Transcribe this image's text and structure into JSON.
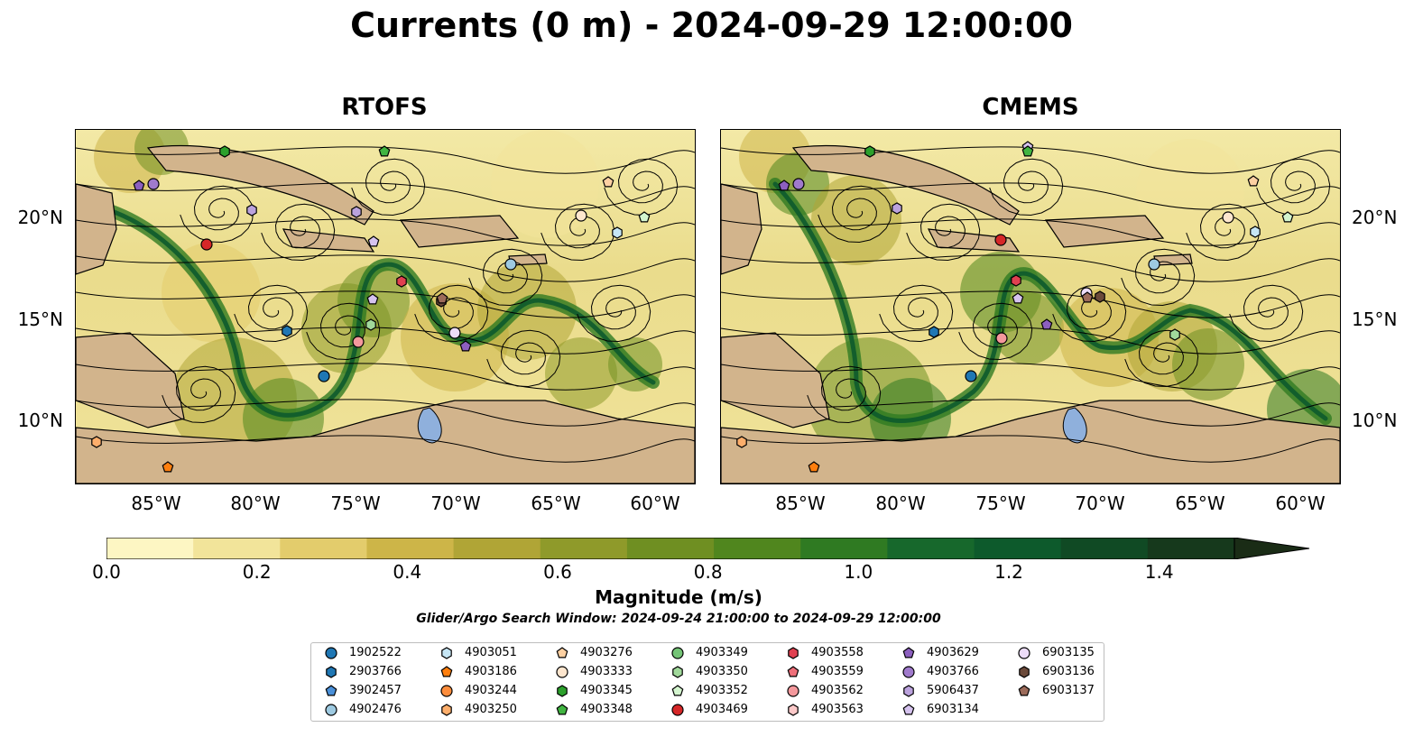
{
  "title": "Currents (0 m) - 2024-09-29 12:00:00",
  "panels": [
    {
      "title": "RTOFS"
    },
    {
      "title": "CMEMS"
    }
  ],
  "x_ticks": [
    "85°W",
    "80°W",
    "75°W",
    "70°W",
    "65°W",
    "60°W"
  ],
  "y_ticks": [
    "20°N",
    "15°N",
    "10°N"
  ],
  "colorbar": {
    "label": "Magnitude (m/s)",
    "ticks": [
      "0.0",
      "0.2",
      "0.4",
      "0.6",
      "0.8",
      "1.0",
      "1.2",
      "1.4"
    ],
    "range": [
      0,
      1.5
    ],
    "colors": [
      "#fdf6c3",
      "#f2e49a",
      "#e3cc6c",
      "#cdb548",
      "#b0a536",
      "#8f9a2a",
      "#6f8f22",
      "#50861e",
      "#2f7a22",
      "#17682c",
      "#0d5a2c",
      "#104a24",
      "#16391c",
      "#1a2c16"
    ]
  },
  "search_window": "Glider/Argo Search Window: 2024-09-24 21:00:00 to 2024-09-29 12:00:00",
  "legend": [
    {
      "label": "1902522",
      "marker": "circle",
      "color": "#1f77b4"
    },
    {
      "label": "2903766",
      "marker": "hexagon",
      "color": "#1f77b4"
    },
    {
      "label": "3902457",
      "marker": "pentagon",
      "color": "#4a90d9"
    },
    {
      "label": "4902476",
      "marker": "circle",
      "color": "#9ecae1"
    },
    {
      "label": "4903051",
      "marker": "hexagon",
      "color": "#c6e6f5"
    },
    {
      "label": "4903186",
      "marker": "pentagon",
      "color": "#ff7f0e"
    },
    {
      "label": "4903244",
      "marker": "circle",
      "color": "#fd8d3c"
    },
    {
      "label": "4903250",
      "marker": "hexagon",
      "color": "#fdae6b"
    },
    {
      "label": "4903276",
      "marker": "pentagon",
      "color": "#fdd0a2"
    },
    {
      "label": "4903333",
      "marker": "circle",
      "color": "#fee6ce"
    },
    {
      "label": "4903345",
      "marker": "hexagon",
      "color": "#2ca02c"
    },
    {
      "label": "4903348",
      "marker": "pentagon",
      "color": "#41b541"
    },
    {
      "label": "4903349",
      "marker": "circle",
      "color": "#74c476"
    },
    {
      "label": "4903350",
      "marker": "hexagon",
      "color": "#a1d99b"
    },
    {
      "label": "4903352",
      "marker": "pentagon",
      "color": "#d4f5cf"
    },
    {
      "label": "4903469",
      "marker": "circle",
      "color": "#d62728"
    },
    {
      "label": "4903558",
      "marker": "hexagon",
      "color": "#e04050"
    },
    {
      "label": "4903559",
      "marker": "pentagon",
      "color": "#ef6f7a"
    },
    {
      "label": "4903562",
      "marker": "circle",
      "color": "#f4989c"
    },
    {
      "label": "4903563",
      "marker": "hexagon",
      "color": "#fcc9c9"
    },
    {
      "label": "4903629",
      "marker": "pentagon",
      "color": "#8c5fbf"
    },
    {
      "label": "4903766",
      "marker": "circle",
      "color": "#a07acc"
    },
    {
      "label": "5906437",
      "marker": "hexagon",
      "color": "#bba2dd"
    },
    {
      "label": "6903134",
      "marker": "pentagon",
      "color": "#d6c3ef"
    },
    {
      "label": "6903135",
      "marker": "circle",
      "color": "#ecdcf8"
    },
    {
      "label": "6903136",
      "marker": "hexagon",
      "color": "#6b4a3a"
    },
    {
      "label": "6903137",
      "marker": "pentagon",
      "color": "#9c6b5a"
    }
  ],
  "colors": {
    "land": "#d2b48c",
    "lake": "#8fb0dc",
    "streamline": "#000000"
  }
}
